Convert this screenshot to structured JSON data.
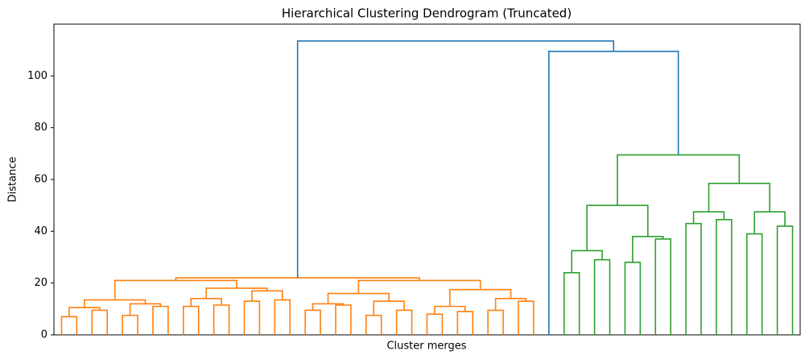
{
  "chart_data": {
    "type": "dendrogram",
    "title": "Hierarchical Clustering Dendrogram (Truncated)",
    "x_label": "Cluster merges",
    "y_label": "Distance",
    "ylim": [
      0,
      120
    ],
    "yticks": [
      0,
      20,
      40,
      60,
      80,
      100
    ],
    "tree": {
      "height": 113.5,
      "color": "#1f77b4",
      "children": [
        {
          "height": 22,
          "color": "#ff7f0e",
          "children": [
            {
              "height": 21,
              "children": [
                {
                  "height": 13.5,
                  "children": [
                    {
                      "height": 10.5,
                      "children": [
                        {
                          "height": 7,
                          "children": [
                            0,
                            0
                          ]
                        },
                        {
                          "height": 9.5,
                          "children": [
                            0,
                            0
                          ]
                        }
                      ]
                    },
                    {
                      "height": 12,
                      "children": [
                        {
                          "height": 7.5,
                          "children": [
                            0,
                            0
                          ]
                        },
                        {
                          "height": 11,
                          "children": [
                            0,
                            0
                          ]
                        }
                      ]
                    }
                  ]
                },
                {
                  "height": 18,
                  "children": [
                    {
                      "height": 14,
                      "children": [
                        {
                          "height": 11,
                          "children": [
                            0,
                            0
                          ]
                        },
                        {
                          "height": 11.5,
                          "children": [
                            0,
                            0
                          ]
                        }
                      ]
                    },
                    {
                      "height": 17,
                      "children": [
                        {
                          "height": 13,
                          "children": [
                            0,
                            0
                          ]
                        },
                        {
                          "height": 13.5,
                          "children": [
                            0,
                            0
                          ]
                        }
                      ]
                    }
                  ]
                }
              ]
            },
            {
              "height": 21,
              "children": [
                {
                  "height": 16,
                  "children": [
                    {
                      "height": 12,
                      "children": [
                        {
                          "height": 9.5,
                          "children": [
                            0,
                            0
                          ]
                        },
                        {
                          "height": 11.5,
                          "children": [
                            0,
                            0
                          ]
                        }
                      ]
                    },
                    {
                      "height": 13,
                      "children": [
                        {
                          "height": 7.5,
                          "children": [
                            0,
                            0
                          ]
                        },
                        {
                          "height": 9.5,
                          "children": [
                            0,
                            0
                          ]
                        }
                      ]
                    }
                  ]
                },
                {
                  "height": 17.5,
                  "children": [
                    {
                      "height": 11,
                      "children": [
                        {
                          "height": 8,
                          "children": [
                            0,
                            0
                          ]
                        },
                        {
                          "height": 9,
                          "children": [
                            0,
                            0
                          ]
                        }
                      ]
                    },
                    {
                      "height": 14,
                      "children": [
                        {
                          "height": 9.5,
                          "children": [
                            0,
                            0
                          ]
                        },
                        {
                          "height": 13,
                          "children": [
                            0,
                            0
                          ]
                        }
                      ]
                    }
                  ]
                }
              ]
            }
          ]
        },
        {
          "height": 109.5,
          "children": [
            0,
            {
              "height": 69.5,
              "color": "#2ca02c",
              "children": [
                {
                  "height": 50,
                  "children": [
                    {
                      "height": 32.5,
                      "children": [
                        {
                          "height": 24,
                          "children": [
                            0,
                            0
                          ]
                        },
                        {
                          "height": 29,
                          "children": [
                            0,
                            0
                          ]
                        }
                      ]
                    },
                    {
                      "height": 38,
                      "children": [
                        {
                          "height": 28,
                          "children": [
                            0,
                            0
                          ]
                        },
                        {
                          "height": 37,
                          "children": [
                            0,
                            0
                          ]
                        }
                      ]
                    }
                  ]
                },
                {
                  "height": 58.5,
                  "children": [
                    {
                      "height": 47.5,
                      "children": [
                        {
                          "height": 43,
                          "children": [
                            0,
                            0
                          ]
                        },
                        {
                          "height": 44.5,
                          "children": [
                            0,
                            0
                          ]
                        }
                      ]
                    },
                    {
                      "height": 47.5,
                      "children": [
                        {
                          "height": 39,
                          "children": [
                            0,
                            0
                          ]
                        },
                        {
                          "height": 42,
                          "children": [
                            0,
                            0
                          ]
                        }
                      ]
                    }
                  ]
                }
              ]
            }
          ]
        }
      ]
    }
  }
}
